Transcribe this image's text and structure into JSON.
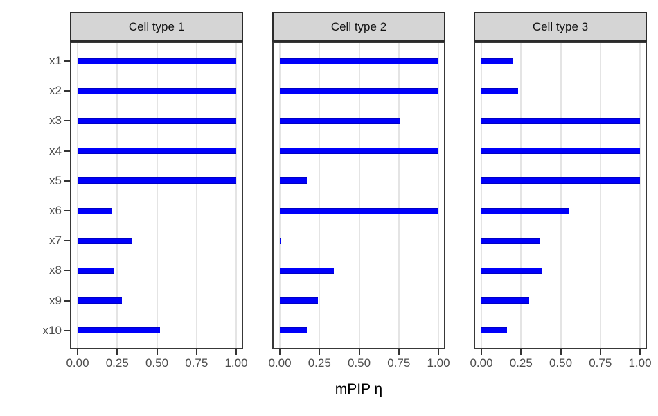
{
  "chart_data": {
    "type": "bar",
    "orientation": "horizontal",
    "faceted": true,
    "title": "",
    "xlabel": "mPIP η",
    "categories": [
      "x1",
      "x2",
      "x3",
      "x4",
      "x5",
      "x6",
      "x7",
      "x8",
      "x9",
      "x10"
    ],
    "x_tick_labels": [
      "0.00",
      "0.25",
      "0.50",
      "0.75",
      "1.00"
    ],
    "x_tick_values": [
      0,
      0.25,
      0.5,
      0.75,
      1.0
    ],
    "xlim": [
      0,
      1
    ],
    "grid": "vertical-major-only",
    "legend": "none",
    "bar_color": "#0000fa",
    "series": [
      {
        "name": "Cell type 1",
        "values": [
          1.0,
          1.0,
          1.0,
          1.0,
          1.0,
          0.22,
          0.34,
          0.23,
          0.28,
          0.52
        ]
      },
      {
        "name": "Cell type 2",
        "values": [
          1.0,
          1.0,
          0.76,
          1.0,
          0.17,
          1.0,
          0.01,
          0.34,
          0.24,
          0.17
        ]
      },
      {
        "name": "Cell type 3",
        "values": [
          0.2,
          0.23,
          1.0,
          1.0,
          1.0,
          0.55,
          0.37,
          0.38,
          0.3,
          0.16
        ]
      }
    ]
  }
}
